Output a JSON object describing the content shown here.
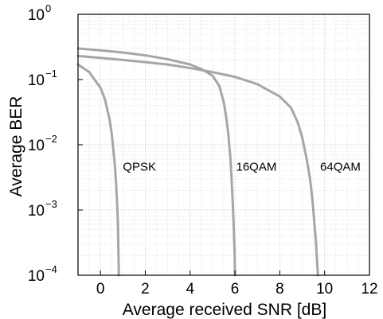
{
  "chart_data": {
    "type": "line",
    "xlabel": "Average received SNR [dB]",
    "ylabel": "Average BER",
    "xlim": [
      -1,
      12
    ],
    "ylim": [
      0.0001,
      1
    ],
    "yscale": "log",
    "grid": true,
    "x_ticks": [
      0,
      2,
      4,
      6,
      8,
      10,
      12
    ],
    "y_ticks": [
      {
        "value": 1,
        "base": "10",
        "exp": "0"
      },
      {
        "value": 0.1,
        "base": "10",
        "exp": "−1"
      },
      {
        "value": 0.01,
        "base": "10",
        "exp": "−2"
      },
      {
        "value": 0.001,
        "base": "10",
        "exp": "−3"
      },
      {
        "value": 0.0001,
        "base": "10",
        "exp": "−4"
      }
    ],
    "series": [
      {
        "name": "QPSK",
        "color": "#a6a6a6",
        "x": [
          -1,
          -0.5,
          0,
          0.2,
          0.4,
          0.5,
          0.6,
          0.65,
          0.7,
          0.75,
          0.78,
          0.8,
          0.82
        ],
        "y": [
          0.17,
          0.13,
          0.075,
          0.05,
          0.025,
          0.015,
          0.007,
          0.0045,
          0.0025,
          0.0011,
          0.0006,
          0.00025,
          0.0001
        ]
      },
      {
        "name": "16QAM",
        "color": "#a6a6a6",
        "x": [
          -1,
          0,
          1,
          2,
          3,
          4,
          4.5,
          5,
          5.3,
          5.5,
          5.6,
          5.7,
          5.8,
          5.85,
          5.9,
          5.95,
          5.98,
          6.0
        ],
        "y": [
          0.3,
          0.28,
          0.26,
          0.235,
          0.205,
          0.17,
          0.145,
          0.115,
          0.08,
          0.045,
          0.028,
          0.015,
          0.006,
          0.003,
          0.0013,
          0.0005,
          0.00025,
          0.0001
        ]
      },
      {
        "name": "64QAM",
        "color": "#a6a6a6",
        "x": [
          -1,
          0,
          1,
          2,
          3,
          4,
          5,
          6,
          7,
          8,
          8.5,
          8.8,
          9.0,
          9.2,
          9.35,
          9.45,
          9.55,
          9.62,
          9.66,
          9.7
        ],
        "y": [
          0.23,
          0.215,
          0.2,
          0.185,
          0.17,
          0.15,
          0.13,
          0.11,
          0.085,
          0.055,
          0.037,
          0.022,
          0.013,
          0.006,
          0.003,
          0.0015,
          0.0006,
          0.0003,
          0.00017,
          0.0001
        ]
      }
    ],
    "annotations": [
      {
        "text": "QPSK",
        "x": 1.0,
        "y": 0.004
      },
      {
        "text": "16QAM",
        "x": 6.05,
        "y": 0.004
      },
      {
        "text": "64QAM",
        "x": 9.8,
        "y": 0.004
      }
    ]
  }
}
